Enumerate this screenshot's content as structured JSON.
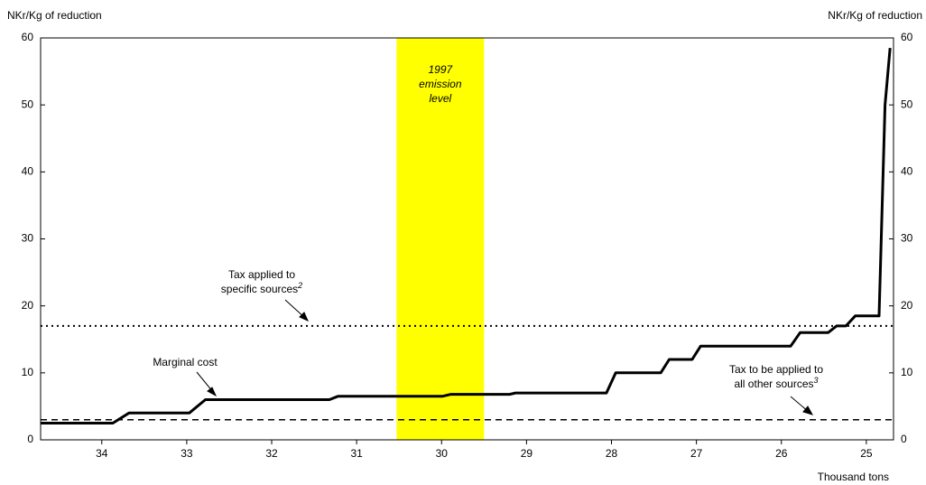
{
  "chart_data": {
    "type": "line",
    "y_label": "NKr/Kg of reduction",
    "y2_label": "NKr/Kg of reduction",
    "x_label": "Thousand tons",
    "xlim": [
      34.72,
      24.68
    ],
    "xticks": [
      34,
      33,
      32,
      31,
      30,
      29,
      28,
      27,
      26,
      25
    ],
    "ylim": [
      0,
      60
    ],
    "yticks": [
      0,
      10,
      20,
      30,
      40,
      50,
      60
    ],
    "y2lim": [
      0,
      60
    ],
    "y2ticks": [
      0,
      10,
      20,
      30,
      40,
      50,
      60
    ],
    "series": [
      {
        "name": "Marginal cost",
        "color": "#000000",
        "x": [
          34.72,
          33.87,
          33.68,
          32.97,
          32.78,
          31.32,
          31.22,
          29.99,
          29.89,
          29.2,
          29.13,
          28.06,
          27.95,
          27.42,
          27.32,
          27.05,
          26.95,
          25.89,
          25.78,
          25.45,
          25.35,
          25.24,
          25.13,
          24.85,
          24.78,
          24.72
        ],
        "values": [
          2.5,
          2.5,
          4,
          4,
          6,
          6,
          6.5,
          6.5,
          6.8,
          6.8,
          7,
          7,
          10,
          10,
          12,
          12,
          14,
          14,
          16,
          16,
          17,
          17,
          18.5,
          18.5,
          50,
          58.5
        ]
      }
    ],
    "reference_lines": [
      {
        "lines": [
          "Tax applied to",
          "specific sources"
        ],
        "note": "2",
        "value": 17,
        "style": "dotted"
      },
      {
        "lines": [
          "Tax to be applied to",
          "all other sources"
        ],
        "note": "3",
        "value": 3,
        "style": "dashed"
      }
    ],
    "band": {
      "lines": [
        "1997",
        "emission",
        "level"
      ],
      "range": [
        30.53,
        29.5
      ],
      "color": "#ffff00"
    }
  }
}
